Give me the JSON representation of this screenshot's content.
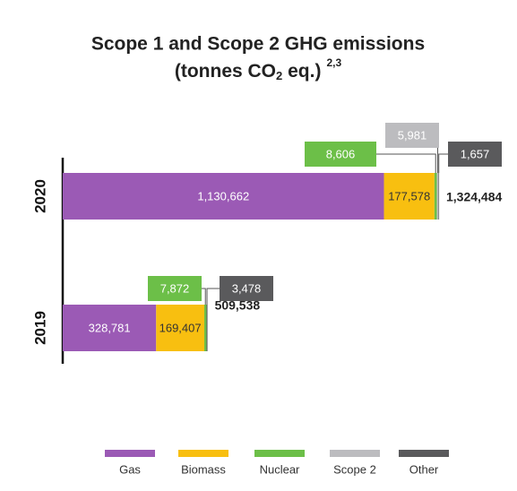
{
  "chart_data": {
    "type": "stacked-barh",
    "title": "Scope 1 and Scope 2 GHG emissions",
    "subtitle_parts": [
      "(tonnes CO",
      "2",
      " eq.)",
      "2,3"
    ],
    "categories": [
      "2020",
      "2019"
    ],
    "series": [
      {
        "name": "Gas",
        "color": "#9b5ab5",
        "values": [
          1130662,
          328781
        ],
        "value_labels": [
          "1,130,662",
          "328,781"
        ]
      },
      {
        "name": "Biomass",
        "color": "#f8bf10",
        "values": [
          177578,
          169407
        ],
        "value_labels": [
          "177,578",
          "169,407"
        ]
      },
      {
        "name": "Nuclear",
        "color": "#6cbf48",
        "values": [
          8606,
          7872
        ],
        "value_labels": [
          "8,606",
          "7,872"
        ]
      },
      {
        "name": "Scope 2",
        "color": "#bcbcbf",
        "values": [
          5981,
          null
        ],
        "value_labels": [
          "5,981",
          null
        ]
      },
      {
        "name": "Other",
        "color": "#5a5a5c",
        "values": [
          1657,
          3478
        ],
        "value_labels": [
          "1,657",
          "3,478"
        ]
      }
    ],
    "totals": [
      1324484,
      509538
    ],
    "total_labels": [
      "1,324,484",
      "509,538"
    ]
  }
}
